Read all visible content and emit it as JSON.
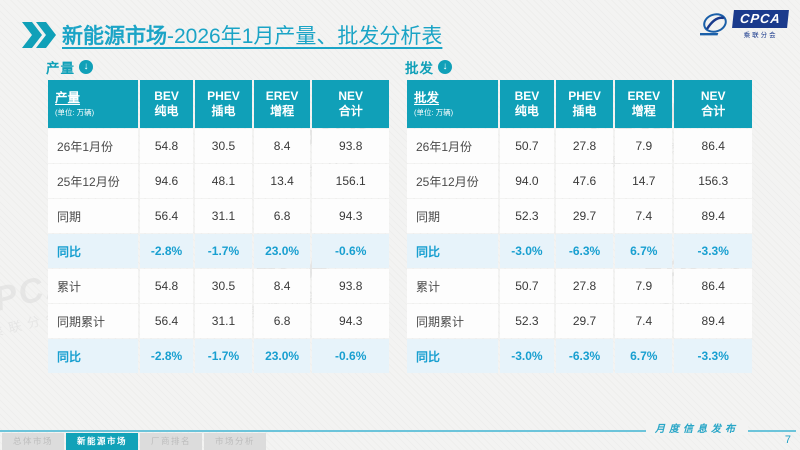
{
  "page": {
    "title_bold": "新能源市场",
    "title_rest": "-2026年1月产量、批发分析表",
    "footer_note": "月度信息发布",
    "page_number": "7"
  },
  "logo": {
    "text": "CPCA",
    "subtext": "乘联分会"
  },
  "watermark": {
    "text": "CPCA",
    "subtext": "乘联分会"
  },
  "colors": {
    "accent_teal": "#10a0b8",
    "title_teal": "#1ba4c6",
    "highlight_text": "#189fd0",
    "highlight_bg": "#e7f3fa",
    "logo_navy": "#1a3a8c",
    "footer_line": "#6cc4da"
  },
  "tables": [
    {
      "section_label": "产量",
      "header_label": "产量",
      "unit": "(单位: 万辆)",
      "columns": [
        {
          "line1": "BEV",
          "line2": "纯电"
        },
        {
          "line1": "PHEV",
          "line2": "插电"
        },
        {
          "line1": "EREV",
          "line2": "增程"
        },
        {
          "line1": "NEV",
          "line2": "合计"
        }
      ],
      "rows": [
        {
          "label": "26年1月份",
          "cells": [
            "54.8",
            "30.5",
            "8.4",
            "93.8"
          ],
          "highlight": false
        },
        {
          "label": "25年12月份",
          "cells": [
            "94.6",
            "48.1",
            "13.4",
            "156.1"
          ],
          "highlight": false
        },
        {
          "label": "同期",
          "cells": [
            "56.4",
            "31.1",
            "6.8",
            "94.3"
          ],
          "highlight": false
        },
        {
          "label": "同比",
          "cells": [
            "-2.8%",
            "-1.7%",
            "23.0%",
            "-0.6%"
          ],
          "highlight": true
        },
        {
          "label": "累计",
          "cells": [
            "54.8",
            "30.5",
            "8.4",
            "93.8"
          ],
          "highlight": false
        },
        {
          "label": "同期累计",
          "cells": [
            "56.4",
            "31.1",
            "6.8",
            "94.3"
          ],
          "highlight": false
        },
        {
          "label": "同比",
          "cells": [
            "-2.8%",
            "-1.7%",
            "23.0%",
            "-0.6%"
          ],
          "highlight": true
        }
      ]
    },
    {
      "section_label": "批发",
      "header_label": "批发",
      "unit": "(单位: 万辆)",
      "columns": [
        {
          "line1": "BEV",
          "line2": "纯电"
        },
        {
          "line1": "PHEV",
          "line2": "插电"
        },
        {
          "line1": "EREV",
          "line2": "增程"
        },
        {
          "line1": "NEV",
          "line2": "合计"
        }
      ],
      "rows": [
        {
          "label": "26年1月份",
          "cells": [
            "50.7",
            "27.8",
            "7.9",
            "86.4"
          ],
          "highlight": false
        },
        {
          "label": "25年12月份",
          "cells": [
            "94.0",
            "47.6",
            "14.7",
            "156.3"
          ],
          "highlight": false
        },
        {
          "label": "同期",
          "cells": [
            "52.3",
            "29.7",
            "7.4",
            "89.4"
          ],
          "highlight": false
        },
        {
          "label": "同比",
          "cells": [
            "-3.0%",
            "-6.3%",
            "6.7%",
            "-3.3%"
          ],
          "highlight": true
        },
        {
          "label": "累计",
          "cells": [
            "50.7",
            "27.8",
            "7.9",
            "86.4"
          ],
          "highlight": false
        },
        {
          "label": "同期累计",
          "cells": [
            "52.3",
            "29.7",
            "7.4",
            "89.4"
          ],
          "highlight": false
        },
        {
          "label": "同比",
          "cells": [
            "-3.0%",
            "-6.3%",
            "6.7%",
            "-3.3%"
          ],
          "highlight": true
        }
      ]
    }
  ],
  "footer": {
    "tabs": [
      "总体市场",
      "新能源市场",
      "厂商排名",
      "市场分析"
    ],
    "active_tab": "新能源市场"
  }
}
